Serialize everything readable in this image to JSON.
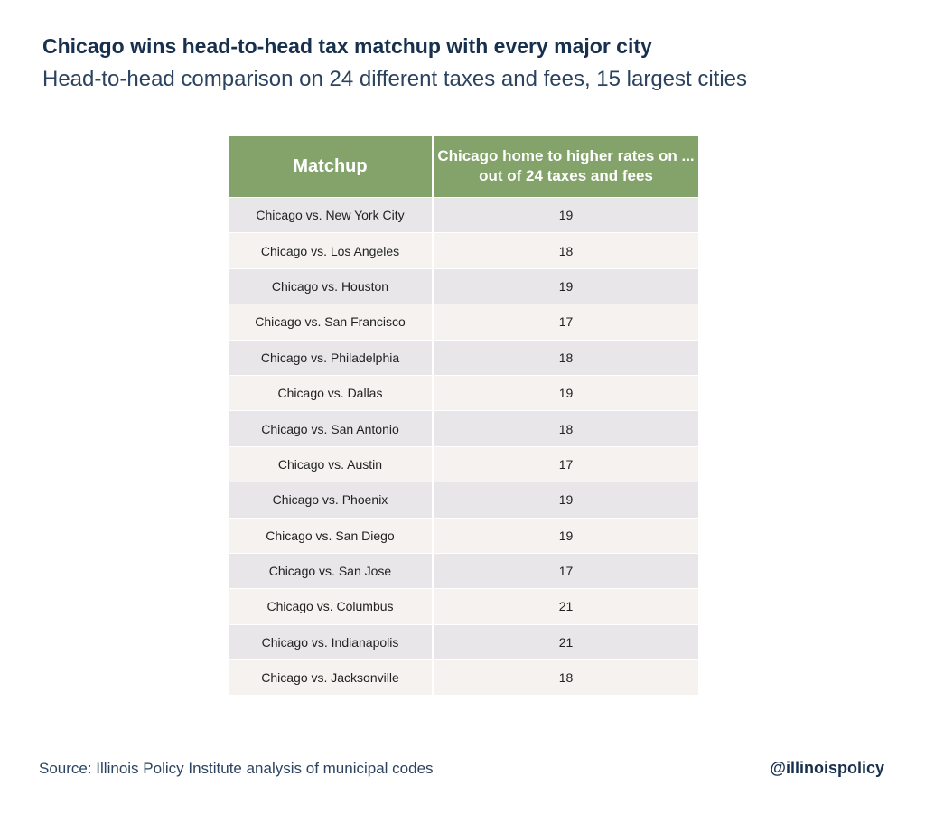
{
  "title": "Chicago wins head-to-head tax matchup with every major city",
  "subtitle": "Head-to-head comparison on 24 different taxes and fees, 15 largest cities",
  "chart_data": {
    "type": "table",
    "columns": [
      "Matchup",
      "Chicago home to higher rates on ... out of 24 taxes and fees"
    ],
    "rows": [
      [
        "Chicago vs. New York City",
        19
      ],
      [
        "Chicago vs. Los Angeles",
        18
      ],
      [
        "Chicago vs. Houston",
        19
      ],
      [
        "Chicago vs. San Francisco",
        17
      ],
      [
        "Chicago vs. Philadelphia",
        18
      ],
      [
        "Chicago vs. Dallas",
        19
      ],
      [
        "Chicago vs. San Antonio",
        18
      ],
      [
        "Chicago vs. Austin",
        17
      ],
      [
        "Chicago vs. Phoenix",
        19
      ],
      [
        "Chicago vs. San Diego",
        19
      ],
      [
        "Chicago vs. San Jose",
        17
      ],
      [
        "Chicago vs. Columbus",
        21
      ],
      [
        "Chicago vs. Indianapolis",
        21
      ],
      [
        "Chicago vs. Jacksonville",
        18
      ]
    ]
  },
  "colors": {
    "header": "#84a36b",
    "row_a": "#e8e6e8",
    "row_b": "#f5f2ef",
    "text": "#17304d"
  },
  "footer": {
    "source": "Source: Illinois Policy Institute analysis of municipal codes",
    "handle": "@illinoispolicy"
  }
}
